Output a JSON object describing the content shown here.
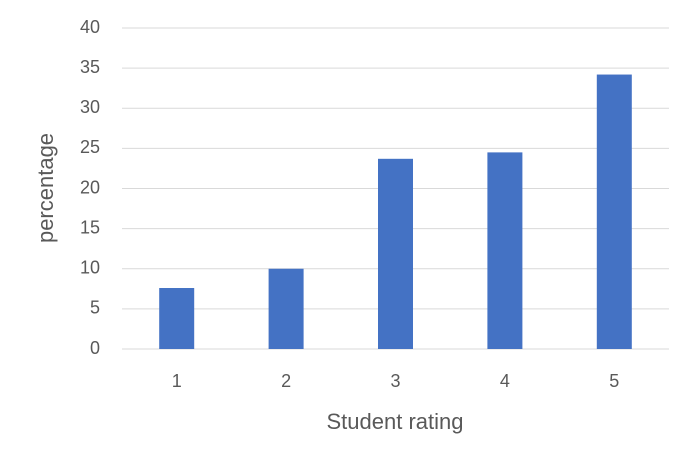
{
  "chart_data": {
    "type": "bar",
    "x_label": "Student rating",
    "y_label": "percentage",
    "categories": [
      "1",
      "2",
      "3",
      "4",
      "5"
    ],
    "values": [
      7.6,
      10,
      23.7,
      24.5,
      34.2
    ],
    "color": "#4472c4",
    "ylim": [
      0,
      40
    ],
    "yticks": [
      0,
      5,
      10,
      15,
      20,
      25,
      30,
      35,
      40
    ],
    "grid": true
  }
}
